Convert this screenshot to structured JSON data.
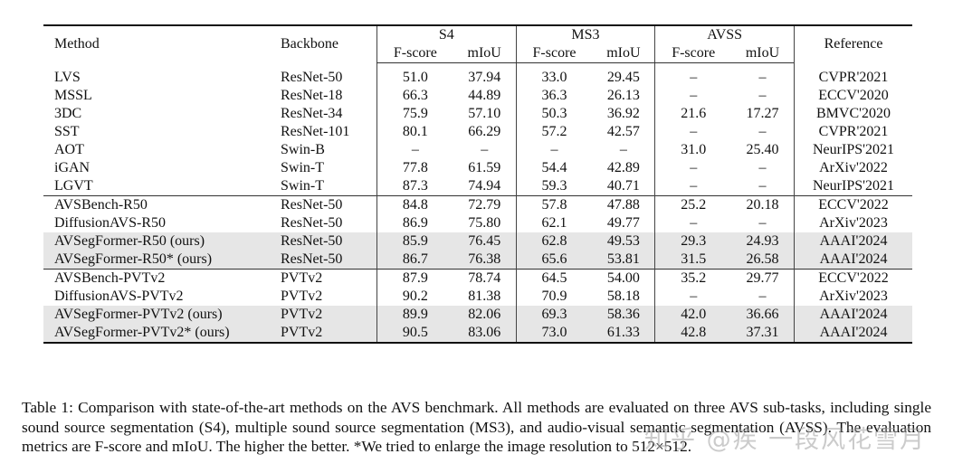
{
  "table": {
    "headers": {
      "method": "Method",
      "backbone": "Backbone",
      "groups": [
        "S4",
        "MS3",
        "AVSS"
      ],
      "metrics": [
        "F-score",
        "mIoU",
        "F-score",
        "mIoU",
        "F-score",
        "mIoU"
      ],
      "reference": "Reference"
    },
    "groups": [
      {
        "rows": [
          {
            "method": "LVS",
            "backbone": "ResNet-50",
            "values": [
              "51.0",
              "37.94",
              "33.0",
              "29.45",
              "–",
              "–"
            ],
            "reference": "CVPR'2021",
            "bold": [],
            "highlight": false
          },
          {
            "method": "MSSL",
            "backbone": "ResNet-18",
            "values": [
              "66.3",
              "44.89",
              "36.3",
              "26.13",
              "–",
              "–"
            ],
            "reference": "ECCV'2020",
            "bold": [],
            "highlight": false
          },
          {
            "method": "3DC",
            "backbone": "ResNet-34",
            "values": [
              "75.9",
              "57.10",
              "50.3",
              "36.92",
              "21.6",
              "17.27"
            ],
            "reference": "BMVC'2020",
            "bold": [],
            "highlight": false
          },
          {
            "method": "SST",
            "backbone": "ResNet-101",
            "values": [
              "80.1",
              "66.29",
              "57.2",
              "42.57",
              "–",
              "–"
            ],
            "reference": "CVPR'2021",
            "bold": [],
            "highlight": false
          },
          {
            "method": "AOT",
            "backbone": "Swin-B",
            "values": [
              "–",
              "–",
              "–",
              "–",
              "31.0",
              "25.40"
            ],
            "reference": "NeurIPS'2021",
            "bold": [],
            "highlight": false
          },
          {
            "method": "iGAN",
            "backbone": "Swin-T",
            "values": [
              "77.8",
              "61.59",
              "54.4",
              "42.89",
              "–",
              "–"
            ],
            "reference": "ArXiv'2022",
            "bold": [],
            "highlight": false
          },
          {
            "method": "LGVT",
            "backbone": "Swin-T",
            "values": [
              "87.3",
              "74.94",
              "59.3",
              "40.71",
              "–",
              "–"
            ],
            "reference": "NeurIPS'2021",
            "bold": [],
            "highlight": false
          }
        ]
      },
      {
        "rows": [
          {
            "method": "AVSBench-R50",
            "backbone": "ResNet-50",
            "values": [
              "84.8",
              "72.79",
              "57.8",
              "47.88",
              "25.2",
              "20.18"
            ],
            "reference": "ECCV'2022",
            "bold": [],
            "highlight": false
          },
          {
            "method": "DiffusionAVS-R50",
            "backbone": "ResNet-50",
            "values": [
              "86.9",
              "75.80",
              "62.1",
              "49.77",
              "–",
              "–"
            ],
            "reference": "ArXiv'2023",
            "bold": [
              0
            ],
            "highlight": false
          },
          {
            "method": "AVSegFormer-R50 (ours)",
            "backbone": "ResNet-50",
            "values": [
              "85.9",
              "76.45",
              "62.8",
              "49.53",
              "29.3",
              "24.93"
            ],
            "reference": "AAAI'2024",
            "bold": [
              1
            ],
            "highlight": true
          },
          {
            "method": "AVSegFormer-R50* (ours)",
            "backbone": "ResNet-50",
            "values": [
              "86.7",
              "76.38",
              "65.6",
              "53.81",
              "31.5",
              "26.58"
            ],
            "reference": "AAAI'2024",
            "bold": [
              2,
              3,
              4,
              5
            ],
            "highlight": true
          }
        ]
      },
      {
        "rows": [
          {
            "method": "AVSBench-PVTv2",
            "backbone": "PVTv2",
            "values": [
              "87.9",
              "78.74",
              "64.5",
              "54.00",
              "35.2",
              "29.77"
            ],
            "reference": "ECCV'2022",
            "bold": [],
            "highlight": false
          },
          {
            "method": "DiffusionAVS-PVTv2",
            "backbone": "PVTv2",
            "values": [
              "90.2",
              "81.38",
              "70.9",
              "58.18",
              "–",
              "–"
            ],
            "reference": "ArXiv'2023",
            "bold": [],
            "highlight": false
          },
          {
            "method": "AVSegFormer-PVTv2 (ours)",
            "backbone": "PVTv2",
            "values": [
              "89.9",
              "82.06",
              "69.3",
              "58.36",
              "42.0",
              "36.66"
            ],
            "reference": "AAAI'2024",
            "bold": [],
            "highlight": true
          },
          {
            "method": "AVSegFormer-PVTv2* (ours)",
            "backbone": "PVTv2",
            "values": [
              "90.5",
              "83.06",
              "73.0",
              "61.33",
              "42.8",
              "37.31"
            ],
            "reference": "AAAI'2024",
            "bold": [
              0,
              1,
              2,
              3,
              4,
              5
            ],
            "highlight": true
          }
        ]
      }
    ]
  },
  "caption": "Table 1: Comparison with state-of-the-art methods on the AVS benchmark. All methods are evaluated on three AVS sub-tasks, including single sound source segmentation (S4), multiple sound source segmentation (MS3), and audio-visual semantic segmentation (AVSS). The evaluation metrics are F-score and mIoU. The higher the better. *We tried to enlarge the image resolution to 512×512.",
  "watermark": "知乎 @疾 一段风花雪月",
  "colors": {
    "highlight_row": "#e6e6e6",
    "rule": "#111111"
  }
}
